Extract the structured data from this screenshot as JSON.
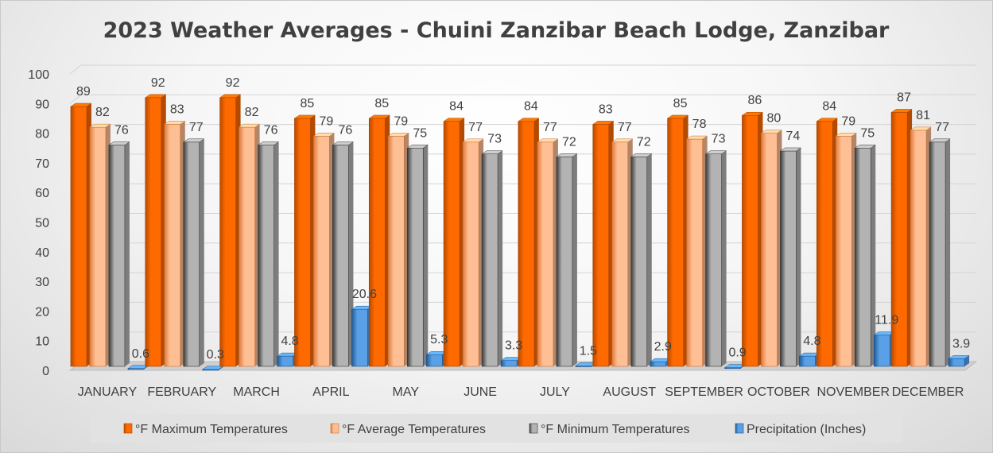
{
  "chart_data": {
    "type": "bar",
    "title": "2023 Weather Averages - Chuini Zanzibar Beach Lodge, Zanzibar",
    "xlabel": "",
    "ylabel": "",
    "ylim": [
      0,
      100
    ],
    "yticks": [
      "0",
      "10",
      "20",
      "30",
      "40",
      "50",
      "60",
      "70",
      "80",
      "90",
      "100"
    ],
    "grid": true,
    "legend_position": "bottom",
    "categories": [
      "JANUARY",
      "FEBRUARY",
      "MARCH",
      "APRIL",
      "MAY",
      "JUNE",
      "JULY",
      "AUGUST",
      "SEPTEMBER",
      "OCTOBER",
      "NOVEMBER",
      "DECEMBER"
    ],
    "series": [
      {
        "name": "°F Maximum Temperatures",
        "color": "#ff6a00",
        "dark": "#b84a00",
        "values": [
          89,
          92,
          92,
          85,
          85,
          84,
          84,
          83,
          85,
          86,
          84,
          87
        ],
        "labels": [
          "89",
          "92",
          "92",
          "85",
          "85",
          "84",
          "84",
          "83",
          "85",
          "86",
          "84",
          "87"
        ]
      },
      {
        "name": "°F Average Temperatures",
        "color": "#ffbf94",
        "dark": "#e07a3a",
        "values": [
          82,
          83,
          82,
          79,
          79,
          77,
          77,
          77,
          78,
          80,
          79,
          81
        ],
        "labels": [
          "82",
          "83",
          "82",
          "79",
          "79",
          "77",
          "77",
          "77",
          "78",
          "80",
          "79",
          "81"
        ]
      },
      {
        "name": "°F Minimum Temperatures",
        "color": "#b3b3b3",
        "dark": "#3a3a3a",
        "values": [
          76,
          77,
          76,
          76,
          75,
          73,
          72,
          72,
          73,
          74,
          75,
          77
        ],
        "labels": [
          "76",
          "77",
          "76",
          "76",
          "75",
          "73",
          "72",
          "72",
          "73",
          "74",
          "75",
          "77"
        ]
      },
      {
        "name": "Precipitation (Inches)",
        "color": "#5aa0e6",
        "dark": "#1f5a94",
        "values": [
          0.6,
          0.3,
          4.8,
          20.6,
          5.3,
          3.3,
          1.5,
          2.9,
          0.9,
          4.8,
          11.9,
          3.9
        ],
        "labels": [
          "0.6",
          "0.3",
          "4.8",
          "20.6",
          "5.3",
          "3.3",
          "1.5",
          "2.9",
          "0.9",
          "4.8",
          "11.9",
          "3.9"
        ]
      }
    ]
  }
}
